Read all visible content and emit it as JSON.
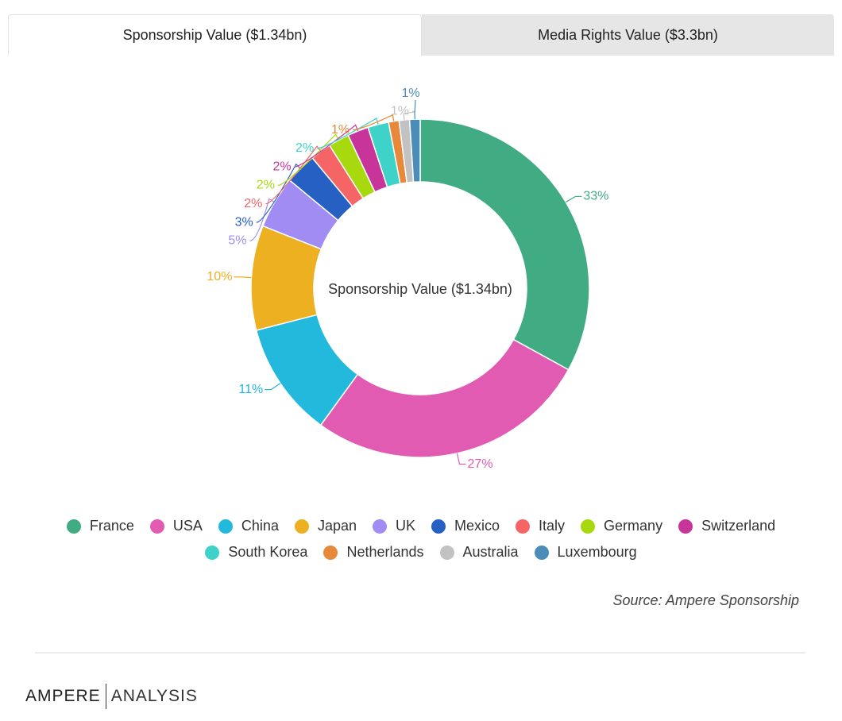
{
  "tabs": {
    "sponsorship": "Sponsorship Value ($1.34bn)",
    "media": "Media Rights Value ($3.3bn)"
  },
  "chart_data": {
    "type": "pie",
    "style": "donut",
    "center_label": "Sponsorship Value ($1.34bn)",
    "slices": [
      {
        "name": "France",
        "value": 33,
        "label": "33%",
        "color": "#41ab84"
      },
      {
        "name": "USA",
        "value": 27,
        "label": "27%",
        "color": "#e15bb3"
      },
      {
        "name": "China",
        "value": 11,
        "label": "11%",
        "color": "#22b9dc"
      },
      {
        "name": "Japan",
        "value": 10,
        "label": "10%",
        "color": "#ecb020"
      },
      {
        "name": "UK",
        "value": 5,
        "label": "5%",
        "color": "#a08cf3"
      },
      {
        "name": "Mexico",
        "value": 3,
        "label": "3%",
        "color": "#2560c2"
      },
      {
        "name": "Italy",
        "value": 2,
        "label": "2%",
        "color": "#f56566"
      },
      {
        "name": "Germany",
        "value": 2,
        "label": "2%",
        "color": "#a8d90f"
      },
      {
        "name": "Switzerland",
        "value": 2,
        "label": "2%",
        "color": "#c8359a"
      },
      {
        "name": "South Korea",
        "value": 2,
        "label": "2%",
        "color": "#3fd2c8"
      },
      {
        "name": "Netherlands",
        "value": 1,
        "label": "1%",
        "color": "#e7883a"
      },
      {
        "name": "Australia",
        "value": 1,
        "label": "1%",
        "color": "#c2c2c2"
      },
      {
        "name": "Luxembourg",
        "value": 1,
        "label": "1%",
        "color": "#4b8db9"
      }
    ],
    "legend_position": "bottom"
  },
  "source": "Source: Ampere Sponsorship",
  "logo": {
    "word1": "AMPERE",
    "word2": "ANALYSIS"
  }
}
